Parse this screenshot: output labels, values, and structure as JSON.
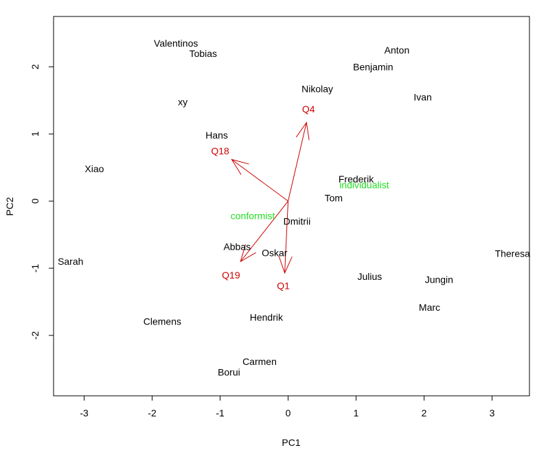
{
  "chart_data": {
    "type": "scatter",
    "subtype": "biplot",
    "title": "",
    "xlabel": "PC1",
    "ylabel": "PC2",
    "xlim": [
      -3.45,
      3.55
    ],
    "ylim": [
      -2.9,
      2.75
    ],
    "xticks": [
      -3,
      -2,
      -1,
      0,
      1,
      2,
      3
    ],
    "yticks": [
      -2,
      -1,
      0,
      1,
      2
    ],
    "grid": false,
    "legend": "none",
    "colors": {
      "points": "#000000",
      "arrows": "#cc0000",
      "groups": "#22dd22",
      "axes": "#000000"
    },
    "points": [
      {
        "label": "Valentinos",
        "x": -1.65,
        "y": 2.35
      },
      {
        "label": "Tobias",
        "x": -1.25,
        "y": 2.2
      },
      {
        "label": "Anton",
        "x": 1.6,
        "y": 2.25
      },
      {
        "label": "Benjamin",
        "x": 1.25,
        "y": 2.0
      },
      {
        "label": "Nikolay",
        "x": 0.43,
        "y": 1.67
      },
      {
        "label": "Ivan",
        "x": 1.98,
        "y": 1.55
      },
      {
        "label": "xy",
        "x": -1.55,
        "y": 1.48
      },
      {
        "label": "Hans",
        "x": -1.05,
        "y": 0.98
      },
      {
        "label": "Xiao",
        "x": -2.85,
        "y": 0.48
      },
      {
        "label": "Frederik",
        "x": 1.0,
        "y": 0.33
      },
      {
        "label": "Tom",
        "x": 0.67,
        "y": 0.05
      },
      {
        "label": "Dmitrii",
        "x": 0.13,
        "y": -0.3
      },
      {
        "label": "Abbas",
        "x": -0.75,
        "y": -0.68
      },
      {
        "label": "Oskar",
        "x": -0.2,
        "y": -0.77
      },
      {
        "label": "Sarah",
        "x": -3.2,
        "y": -0.9
      },
      {
        "label": "Theresa",
        "x": 3.3,
        "y": -0.78
      },
      {
        "label": "Julius",
        "x": 1.2,
        "y": -1.12
      },
      {
        "label": "Jungin",
        "x": 2.22,
        "y": -1.17
      },
      {
        "label": "Marc",
        "x": 2.08,
        "y": -1.58
      },
      {
        "label": "Hendrik",
        "x": -0.32,
        "y": -1.73
      },
      {
        "label": "Clemens",
        "x": -1.85,
        "y": -1.79
      },
      {
        "label": "Carmen",
        "x": -0.42,
        "y": -2.39
      },
      {
        "label": "Borui",
        "x": -0.87,
        "y": -2.55
      }
    ],
    "arrows": [
      {
        "label": "Q4",
        "x": 0.27,
        "y": 1.17,
        "label_x": 0.3,
        "label_y": 1.37
      },
      {
        "label": "Q18",
        "x": -0.83,
        "y": 0.62,
        "label_x": -1.0,
        "label_y": 0.75
      },
      {
        "label": "Q19",
        "x": -0.7,
        "y": -0.9,
        "label_x": -0.84,
        "label_y": -1.1
      },
      {
        "label": "Q1",
        "x": -0.05,
        "y": -1.07,
        "label_x": -0.07,
        "label_y": -1.26
      }
    ],
    "groups": [
      {
        "label": "conformist",
        "x": -0.52,
        "y": -0.22
      },
      {
        "label": "individualist",
        "x": 1.12,
        "y": 0.24
      }
    ]
  }
}
